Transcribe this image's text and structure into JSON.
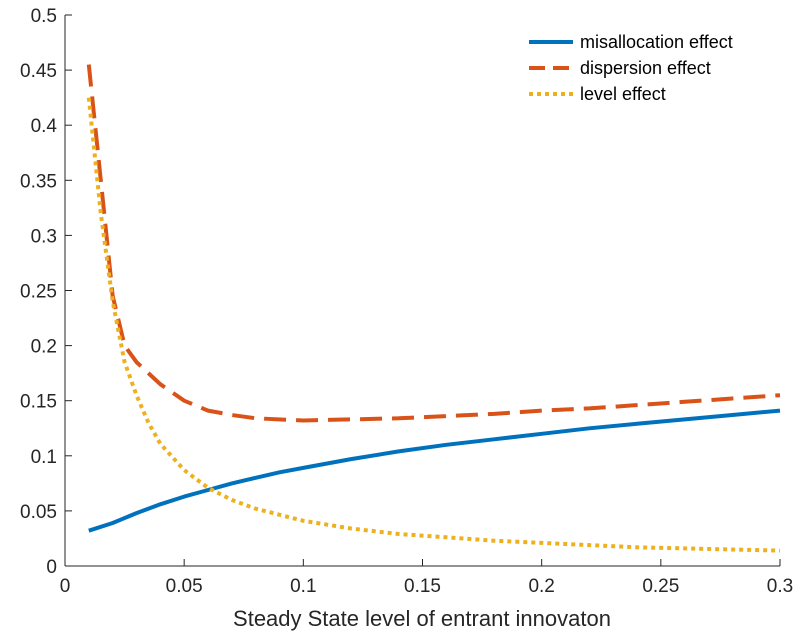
{
  "chart_data": {
    "type": "line",
    "title": "",
    "xlabel": "Steady State level of entrant innovaton",
    "ylabel": "",
    "xlim": [
      0,
      0.3
    ],
    "ylim": [
      0,
      0.5
    ],
    "xticks": [
      0,
      0.05,
      0.1,
      0.15,
      0.2,
      0.25,
      0.3
    ],
    "xtick_labels": [
      "0",
      "0.05",
      "0.1",
      "0.15",
      "0.2",
      "0.25",
      "0.3"
    ],
    "yticks": [
      0,
      0.05,
      0.1,
      0.15,
      0.2,
      0.25,
      0.3,
      0.35,
      0.4,
      0.45,
      0.5
    ],
    "ytick_labels": [
      "0",
      "0.05",
      "0.1",
      "0.15",
      "0.2",
      "0.25",
      "0.3",
      "0.35",
      "0.4",
      "0.45",
      "0.5"
    ],
    "grid": false,
    "legend_position": "top-right",
    "series": [
      {
        "name": "misallocation effect",
        "color": "#0072BD",
        "style": "solid",
        "x": [
          0.01,
          0.02,
          0.03,
          0.04,
          0.05,
          0.06,
          0.07,
          0.08,
          0.09,
          0.1,
          0.12,
          0.14,
          0.16,
          0.18,
          0.2,
          0.22,
          0.24,
          0.26,
          0.28,
          0.3
        ],
        "y": [
          0.032,
          0.039,
          0.048,
          0.056,
          0.063,
          0.069,
          0.075,
          0.08,
          0.085,
          0.089,
          0.097,
          0.104,
          0.11,
          0.115,
          0.12,
          0.125,
          0.129,
          0.133,
          0.137,
          0.141
        ]
      },
      {
        "name": "dispersion effect",
        "color": "#D95319",
        "style": "dashed",
        "x": [
          0.01,
          0.015,
          0.02,
          0.025,
          0.03,
          0.04,
          0.05,
          0.06,
          0.07,
          0.08,
          0.1,
          0.12,
          0.14,
          0.16,
          0.18,
          0.2,
          0.22,
          0.24,
          0.26,
          0.28,
          0.3
        ],
        "y": [
          0.455,
          0.35,
          0.245,
          0.2,
          0.185,
          0.165,
          0.15,
          0.141,
          0.137,
          0.134,
          0.132,
          0.133,
          0.134,
          0.136,
          0.138,
          0.141,
          0.143,
          0.146,
          0.149,
          0.152,
          0.155
        ]
      },
      {
        "name": "level effect",
        "color": "#EDB120",
        "style": "dotted",
        "x": [
          0.01,
          0.015,
          0.02,
          0.025,
          0.03,
          0.035,
          0.04,
          0.05,
          0.06,
          0.07,
          0.08,
          0.1,
          0.12,
          0.14,
          0.16,
          0.18,
          0.2,
          0.22,
          0.24,
          0.26,
          0.28,
          0.3
        ],
        "y": [
          0.425,
          0.32,
          0.24,
          0.185,
          0.155,
          0.13,
          0.111,
          0.087,
          0.071,
          0.06,
          0.052,
          0.041,
          0.034,
          0.029,
          0.026,
          0.023,
          0.021,
          0.019,
          0.017,
          0.016,
          0.015,
          0.014
        ]
      }
    ]
  }
}
